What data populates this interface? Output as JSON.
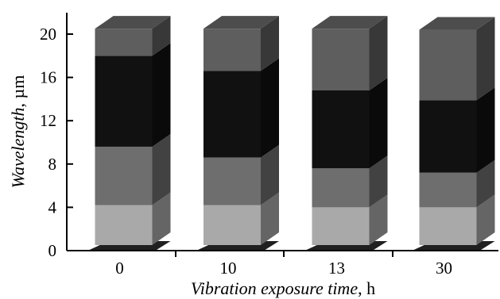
{
  "chart_data": {
    "type": "bar",
    "subtype": "stacked-3d",
    "categories": [
      "0",
      "10",
      "13",
      "30"
    ],
    "series": [
      {
        "values": [
          4.2,
          4.2,
          4.0,
          4.0
        ],
        "color": "#a9a9a9"
      },
      {
        "values": [
          5.4,
          4.4,
          3.6,
          3.2
        ],
        "color": "#6e6e6e"
      },
      {
        "values": [
          8.4,
          8.0,
          7.2,
          6.7
        ],
        "color": "#111111"
      },
      {
        "values": [
          2.5,
          3.9,
          5.7,
          6.5
        ],
        "color": "#5e5e5e"
      }
    ],
    "xlabel_italic": "Vibration exposure time",
    "xlabel_unit": ", h",
    "ylabel_italic": "Wavelength",
    "ylabel_unit": ", µm",
    "ylim": [
      0,
      22
    ],
    "yticks": [
      "0",
      "4",
      "8",
      "12",
      "16",
      "20"
    ],
    "ytick_values": [
      0,
      4,
      8,
      12,
      16,
      20
    ],
    "grid": false,
    "legend": "none"
  }
}
